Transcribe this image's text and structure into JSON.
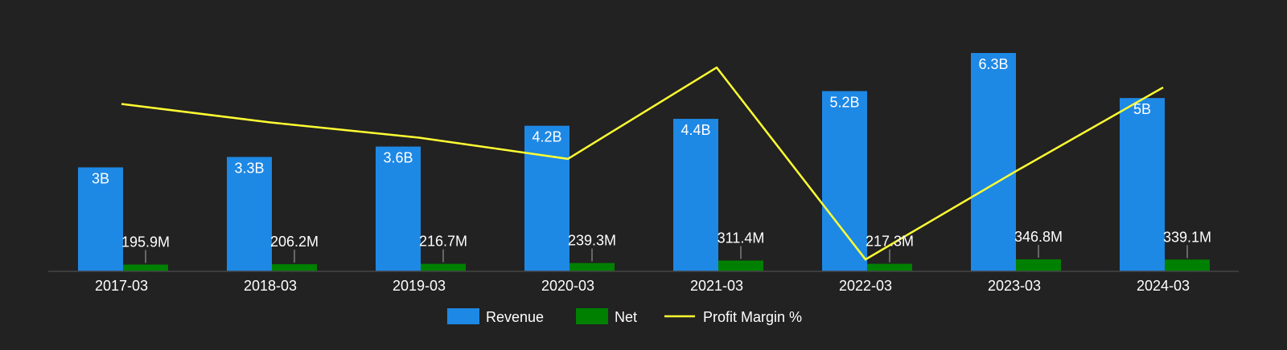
{
  "chart_data": {
    "type": "bar",
    "categories": [
      "2017-03",
      "2018-03",
      "2019-03",
      "2020-03",
      "2021-03",
      "2022-03",
      "2023-03",
      "2024-03"
    ],
    "ylim": [
      0,
      6.3
    ],
    "series": [
      {
        "name": "Revenue",
        "type": "bar",
        "color": "#1e88e5",
        "values": [
          3.0,
          3.3,
          3.6,
          4.2,
          4.4,
          5.2,
          6.3,
          5.0
        ],
        "labels": [
          "3B",
          "3.3B",
          "3.6B",
          "4.2B",
          "4.4B",
          "5.2B",
          "6.3B",
          "5B"
        ]
      },
      {
        "name": "Net",
        "type": "bar",
        "color": "#008000",
        "values": [
          0.1959,
          0.2062,
          0.2167,
          0.2393,
          0.3114,
          0.2173,
          0.3468,
          0.3391
        ],
        "labels": [
          "195.9M",
          "206.2M",
          "216.7M",
          "239.3M",
          "311.4M",
          "217.3M",
          "346.8M",
          "339.1M"
        ]
      },
      {
        "name": "Profit Margin %",
        "type": "line",
        "color": "#ffff33",
        "values": [
          6.53,
          6.25,
          6.02,
          5.7,
          7.08,
          4.18,
          5.5,
          6.78
        ]
      }
    ],
    "line_ylim": [
      4.0,
      7.3
    ],
    "grid": false,
    "legend": "bottom-center"
  }
}
